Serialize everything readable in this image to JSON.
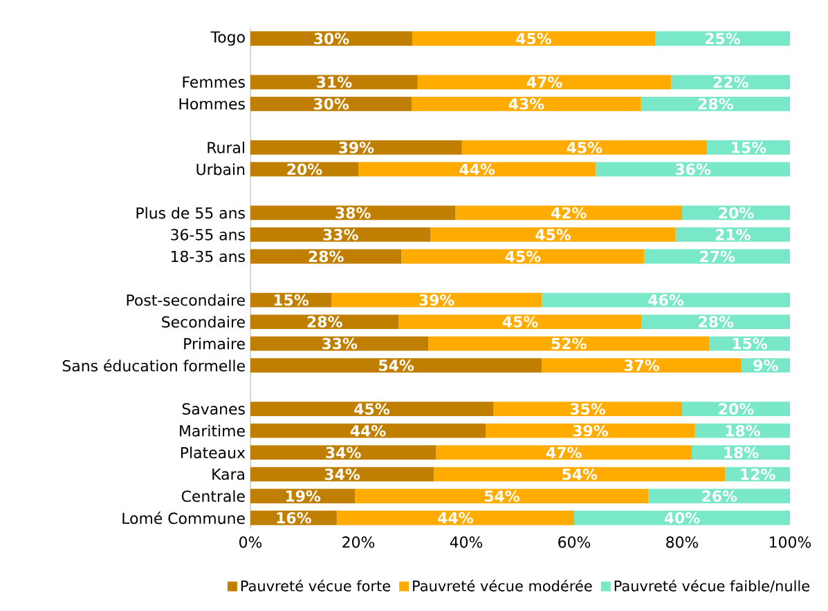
{
  "chart_data": {
    "type": "bar",
    "orientation": "horizontal",
    "stacked": true,
    "categories": [
      "Togo",
      null,
      "Femmes",
      "Hommes",
      null,
      "Rural",
      "Urbain",
      null,
      "Plus de 55 ans",
      "36-55 ans",
      "18-35 ans",
      null,
      "Post-secondaire",
      "Secondaire",
      "Primaire",
      "Sans éducation formelle",
      null,
      "Savanes",
      "Maritime",
      "Plateaux",
      "Kara",
      "Centrale",
      "Lomé Commune"
    ],
    "series": [
      {
        "name": "Pauvreté vécue forte",
        "color": "#c07f00",
        "values": [
          30,
          null,
          31,
          29.9,
          null,
          39.2,
          20,
          null,
          38,
          33.4,
          28,
          null,
          15,
          27.5,
          33,
          54,
          null,
          45,
          43.6,
          34.4,
          34,
          19.4,
          16
        ],
        "value_labels": [
          "30%",
          null,
          "31%",
          "30%",
          null,
          "39%",
          "20%",
          null,
          "38%",
          "33%",
          "28%",
          null,
          "15%",
          "28%",
          "33%",
          "54%",
          null,
          "45%",
          "44%",
          "34%",
          "34%",
          "19%",
          "16%"
        ]
      },
      {
        "name": "Pauvreté vécue modérée",
        "color": "#ffab00",
        "values": [
          45,
          null,
          47,
          42.5,
          null,
          45.4,
          44,
          null,
          42,
          45.4,
          45,
          null,
          39,
          45,
          52,
          37,
          null,
          35,
          38.8,
          47.4,
          54,
          54.4,
          44
        ],
        "value_labels": [
          "45%",
          null,
          "47%",
          "43%",
          null,
          "45%",
          "44%",
          null,
          "42%",
          "45%",
          "45%",
          null,
          "39%",
          "45%",
          "52%",
          "37%",
          null,
          "35%",
          "39%",
          "47%",
          "54%",
          "54%",
          "44%"
        ]
      },
      {
        "name": "Pauvreté vécue faible/nulle",
        "color": "#78e8c8",
        "values": [
          25,
          null,
          22,
          27.6,
          null,
          15.4,
          36,
          null,
          20,
          21.2,
          27,
          null,
          46,
          27.5,
          15,
          9,
          null,
          20,
          17.6,
          18.2,
          12,
          26.2,
          40
        ],
        "value_labels": [
          "25%",
          null,
          "22%",
          "28%",
          null,
          "15%",
          "36%",
          null,
          "20%",
          "21%",
          "27%",
          null,
          "46%",
          "28%",
          "15%",
          "9%",
          null,
          "20%",
          "18%",
          "18%",
          "12%",
          "26%",
          "40%"
        ]
      }
    ],
    "xlim": [
      0,
      100
    ],
    "xticks": [
      {
        "value": 0,
        "label": "0%"
      },
      {
        "value": 20,
        "label": "20%"
      },
      {
        "value": 40,
        "label": "40%"
      },
      {
        "value": 60,
        "label": "60%"
      },
      {
        "value": 80,
        "label": "80%"
      },
      {
        "value": 100,
        "label": "100%"
      }
    ],
    "legend": "bottom"
  }
}
